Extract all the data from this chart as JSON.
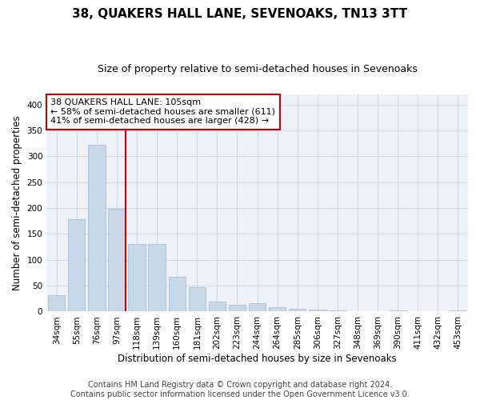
{
  "title": "38, QUAKERS HALL LANE, SEVENOAKS, TN13 3TT",
  "subtitle": "Size of property relative to semi-detached houses in Sevenoaks",
  "xlabel": "Distribution of semi-detached houses by size in Sevenoaks",
  "ylabel": "Number of semi-detached properties",
  "categories": [
    "34sqm",
    "55sqm",
    "76sqm",
    "97sqm",
    "118sqm",
    "139sqm",
    "160sqm",
    "181sqm",
    "202sqm",
    "223sqm",
    "244sqm",
    "264sqm",
    "285sqm",
    "306sqm",
    "327sqm",
    "348sqm",
    "369sqm",
    "390sqm",
    "411sqm",
    "432sqm",
    "453sqm"
  ],
  "values": [
    32,
    178,
    323,
    198,
    130,
    130,
    67,
    47,
    20,
    13,
    16,
    9,
    5,
    4,
    3,
    0,
    0,
    3,
    0,
    1,
    3
  ],
  "bar_color": "#c8d8e8",
  "bar_edge_color": "#9db8d0",
  "property_line_color": "#cc0000",
  "annotation_box_color": "#cc0000",
  "annotation_text": "38 QUAKERS HALL LANE: 105sqm\n← 58% of semi-detached houses are smaller (611)\n41% of semi-detached houses are larger (428) →",
  "footer_line1": "Contains HM Land Registry data © Crown copyright and database right 2024.",
  "footer_line2": "Contains public sector information licensed under the Open Government Licence v3.0.",
  "ylim": [
    0,
    420
  ],
  "yticks": [
    0,
    50,
    100,
    150,
    200,
    250,
    300,
    350,
    400
  ],
  "title_fontsize": 11,
  "subtitle_fontsize": 9,
  "xlabel_fontsize": 8.5,
  "ylabel_fontsize": 8.5,
  "tick_fontsize": 7.5,
  "annotation_fontsize": 8,
  "footer_fontsize": 7,
  "grid_color": "#d0d8e4",
  "background_color": "#eef2f8"
}
